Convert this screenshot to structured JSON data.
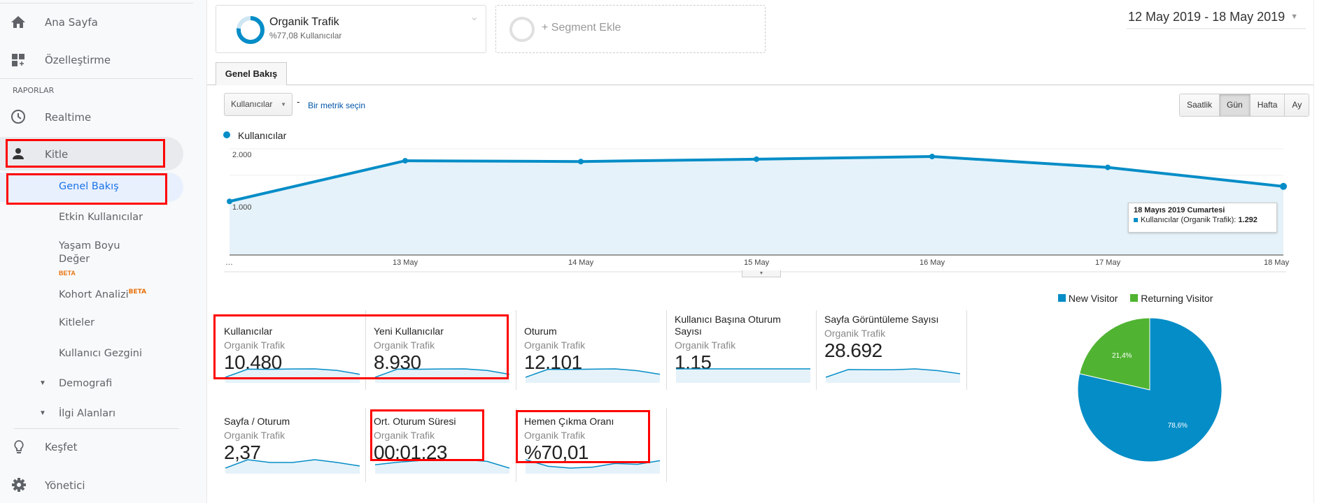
{
  "sidebar": {
    "home": "Ana Sayfa",
    "customize": "Özelleştirme",
    "reports_header": "RAPORLAR",
    "realtime": "Realtime",
    "audience": "Kitle",
    "sub_items": {
      "overview": "Genel Bakış",
      "active_users": "Etkin Kullanıcılar",
      "ltv_line1": "Yaşam Boyu",
      "ltv_line2": "Değer",
      "ltv_badge": "BETA",
      "cohort": "Kohort Analizi",
      "cohort_badge": "BETA",
      "audiences": "Kitleler",
      "user_explorer": "Kullanıcı Gezgini",
      "demographics": "Demografi",
      "interests": "İlgi Alanları"
    },
    "discover": "Keşfet",
    "admin": "Yönetici"
  },
  "segment": {
    "name": "Organik Trafik",
    "detail": "%77,08 Kullanıcılar",
    "share_percent": 77.08,
    "add_label": "+ Segment Ekle"
  },
  "date_range": "12 May 2019 - 18 May 2019",
  "tab": "Genel Bakış",
  "metric_select": {
    "value": "Kullanıcılar",
    "separator": "-",
    "link": "Bir metrik seçin"
  },
  "granularity": {
    "options": [
      "Saatlik",
      "Gün",
      "Hafta",
      "Ay"
    ],
    "selected": "Gün"
  },
  "chart_data": [
    {
      "type": "area",
      "legend": "Kullanıcılar",
      "color": "#058dc7",
      "x": [
        "12 May",
        "13 May",
        "14 May",
        "15 May",
        "16 May",
        "17 May",
        "18 May"
      ],
      "x_tick_labels": [
        "…",
        "13 May",
        "14 May",
        "15 May",
        "16 May",
        "17 May",
        "18 May"
      ],
      "y": [
        1010,
        1775,
        1760,
        1805,
        1855,
        1650,
        1292
      ],
      "y_ticks": [
        {
          "value": 2000,
          "label": "2.000"
        },
        {
          "value": 1000,
          "label": "1.000"
        }
      ],
      "ylim": [
        0,
        2000
      ],
      "grid": true,
      "tooltip": {
        "title": "18 Mayıs 2019 Cumartesi",
        "series": "Kullanıcılar (Organik Trafik):",
        "value": "1.292"
      }
    },
    {
      "type": "pie",
      "legend_position": "top",
      "slices": [
        {
          "name": "New Visitor",
          "value": 78.6,
          "label": "78,6%",
          "color": "#058dc7"
        },
        {
          "name": "Returning Visitor",
          "value": 21.4,
          "label": "21,4%",
          "color": "#50b432"
        }
      ]
    }
  ],
  "metrics": [
    {
      "title": "Kullanıcılar",
      "segment": "Organik Trafik",
      "value": "10.480",
      "spark": [
        1010,
        1775,
        1760,
        1790,
        1800,
        1650,
        1292
      ]
    },
    {
      "title": "Yeni Kullanıcılar",
      "segment": "Organik Trafik",
      "value": "8.930",
      "spark": [
        860,
        1520,
        1510,
        1530,
        1540,
        1410,
        1100
      ]
    },
    {
      "title": "Oturum",
      "segment": "Organik Trafik",
      "value": "12.101",
      "spark": [
        1170,
        2050,
        2040,
        2070,
        2100,
        1900,
        1500
      ]
    },
    {
      "title": "Kullanıcı Başına Oturum Sayısı",
      "segment": "Organik Trafik",
      "value": "1,15",
      "spark": [
        1.15,
        1.15,
        1.15,
        1.15,
        1.15,
        1.15,
        1.15
      ]
    },
    {
      "title": "Sayfa Görüntüleme Sayısı",
      "segment": "Organik Trafik",
      "value": "28.692",
      "spark": [
        2700,
        4900,
        4850,
        4850,
        5100,
        4600,
        3700
      ]
    },
    {
      "title": "Sayfa / Oturum",
      "segment": "Organik Trafik",
      "value": "2,37",
      "spark": [
        2.3,
        2.42,
        2.38,
        2.38,
        2.42,
        2.38,
        2.33
      ]
    },
    {
      "title": "Ort. Oturum Süresi",
      "segment": "Organik Trafik",
      "value": "00:01:23",
      "spark": [
        80,
        83,
        85,
        86,
        86,
        84,
        76
      ]
    },
    {
      "title": "Hemen Çıkma Oranı",
      "segment": "Organik Trafik",
      "value": "%70,01",
      "spark": [
        70.5,
        69.8,
        69.6,
        69.7,
        70.1,
        70.0,
        70.4
      ]
    }
  ]
}
